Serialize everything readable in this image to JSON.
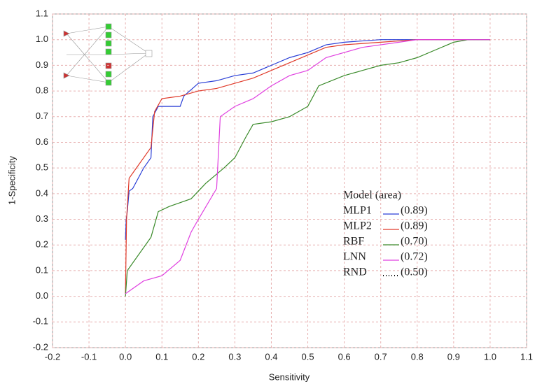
{
  "chart_data": {
    "type": "line",
    "xlabel": "Sensitivity",
    "ylabel": "1-Specificity",
    "xlim": [
      -0.2,
      1.1
    ],
    "ylim": [
      -0.2,
      1.1
    ],
    "xticks": [
      -0.2,
      -0.1,
      {
        "value": 0,
        "label": "0.0"
      },
      0.1,
      0.2,
      0.3,
      0.4,
      0.5,
      0.6,
      0.7,
      0.8,
      0.9,
      {
        "value": 1,
        "label": "1.0"
      },
      1.1
    ],
    "yticks": [
      -0.2,
      -0.1,
      {
        "value": 0,
        "label": "0.0"
      },
      0.1,
      0.2,
      0.3,
      0.4,
      0.5,
      0.6,
      0.7,
      0.8,
      0.9,
      {
        "value": 1,
        "label": "1.0"
      },
      1.1
    ],
    "grid": true,
    "legend": "lower right",
    "legend_title": "Model (area)",
    "series": [
      {
        "name": "MLP1",
        "color": "#2b3fd6",
        "area": {
          "value": 0.89,
          "label": "(0.89)"
        },
        "x": [
          0,
          0.002,
          0.005,
          0.01,
          0.02,
          0.05,
          0.07,
          0.075,
          0.09,
          0.12,
          0.15,
          0.16,
          0.2,
          0.25,
          0.3,
          0.35,
          0.4,
          0.45,
          0.5,
          0.55,
          0.6,
          0.7,
          1.0
        ],
        "values": [
          0.22,
          0.3,
          0.33,
          0.41,
          0.42,
          0.5,
          0.54,
          0.7,
          0.74,
          0.74,
          0.74,
          0.78,
          0.83,
          0.84,
          0.86,
          0.87,
          0.9,
          0.93,
          0.95,
          0.98,
          0.99,
          1.0,
          1.0
        ]
      },
      {
        "name": "MLP2",
        "color": "#e03a2a",
        "area": {
          "value": 0.89,
          "label": "(0.89)"
        },
        "x": [
          0,
          0.003,
          0.01,
          0.02,
          0.07,
          0.08,
          0.1,
          0.15,
          0.2,
          0.25,
          0.3,
          0.35,
          0.4,
          0.45,
          0.5,
          0.55,
          0.6,
          0.7,
          0.8,
          1.0
        ],
        "values": [
          0.01,
          0.3,
          0.46,
          0.48,
          0.58,
          0.72,
          0.77,
          0.78,
          0.8,
          0.81,
          0.83,
          0.85,
          0.88,
          0.91,
          0.94,
          0.97,
          0.98,
          0.99,
          1.0,
          1.0
        ]
      },
      {
        "name": "RBF",
        "color": "#3a8a2a",
        "area": {
          "value": 0.7,
          "label": "(0.70)"
        },
        "x": [
          0,
          0.005,
          0.07,
          0.09,
          0.12,
          0.18,
          0.22,
          0.27,
          0.3,
          0.33,
          0.35,
          0.4,
          0.45,
          0.5,
          0.53,
          0.6,
          0.65,
          0.7,
          0.75,
          0.8,
          0.85,
          0.9,
          0.94,
          1.0
        ],
        "values": [
          0,
          0.1,
          0.23,
          0.33,
          0.35,
          0.38,
          0.44,
          0.5,
          0.54,
          0.62,
          0.67,
          0.68,
          0.7,
          0.74,
          0.82,
          0.86,
          0.88,
          0.9,
          0.91,
          0.93,
          0.96,
          0.99,
          1.0,
          1.0
        ]
      },
      {
        "name": "LNN",
        "color": "#e040e0",
        "area": {
          "value": 0.72,
          "label": "(0.72)"
        },
        "x": [
          0,
          0.01,
          0.05,
          0.1,
          0.15,
          0.18,
          0.2,
          0.25,
          0.26,
          0.3,
          0.35,
          0.4,
          0.45,
          0.5,
          0.55,
          0.6,
          0.65,
          0.75,
          0.8,
          1.0
        ],
        "values": [
          0.01,
          0.02,
          0.06,
          0.08,
          0.14,
          0.25,
          0.3,
          0.42,
          0.7,
          0.74,
          0.77,
          0.82,
          0.86,
          0.88,
          0.93,
          0.95,
          0.97,
          0.99,
          1.0,
          1.0
        ]
      },
      {
        "name": "RND",
        "color": "#000000",
        "dash": "dotted",
        "area": {
          "value": 0.5,
          "label": "(0.50)"
        }
      }
    ]
  }
}
